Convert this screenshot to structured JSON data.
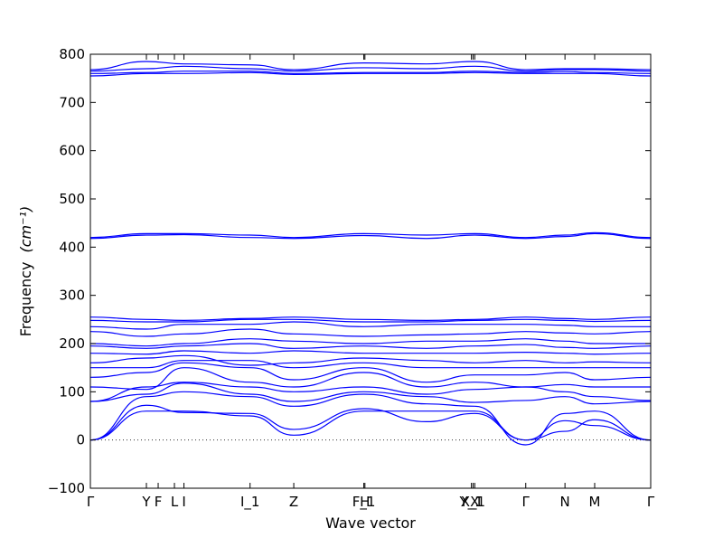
{
  "chart_data": {
    "type": "line",
    "xlabel": "Wave vector",
    "ylabel": "Frequency",
    "ylabel_unit": "(cm⁻¹)",
    "ylim": [
      -100,
      800
    ],
    "yticks": [
      "−100",
      "0",
      "100",
      "200",
      "300",
      "400",
      "500",
      "600",
      "700",
      "800"
    ],
    "ytick_values": [
      -100,
      0,
      100,
      200,
      300,
      400,
      500,
      600,
      700,
      800
    ],
    "xlim": [
      0,
      1
    ],
    "xticks": [
      {
        "label": "Γ",
        "x": 0.0
      },
      {
        "label": "Y",
        "x": 0.1
      },
      {
        "label": "F",
        "x": 0.121
      },
      {
        "label": "L",
        "x": 0.15
      },
      {
        "label": "I",
        "x": 0.167
      },
      {
        "label": "I_1",
        "x": 0.285
      },
      {
        "label": "Z",
        "x": 0.363
      },
      {
        "label": "F_1",
        "x": 0.488
      },
      {
        "label": "H",
        "x": 0.49
      },
      {
        "label": "Y_1",
        "x": 0.68
      },
      {
        "label": "X_1",
        "x": 0.683
      },
      {
        "label": "X",
        "x": 0.686
      },
      {
        "label": "Γ",
        "x": 0.777
      },
      {
        "label": "N",
        "x": 0.847
      },
      {
        "label": "M",
        "x": 0.9
      },
      {
        "label": "Γ",
        "x": 1.0
      }
    ],
    "x_sample": [
      0,
      0.1,
      0.167,
      0.285,
      0.363,
      0.488,
      0.6,
      0.686,
      0.777,
      0.847,
      0.9,
      1.0
    ],
    "series": [
      {
        "values": [
          0,
          72,
          57,
          55,
          22,
          65,
          38,
          55,
          0,
          18,
          42,
          0
        ]
      },
      {
        "values": [
          0,
          60,
          60,
          50,
          10,
          60,
          60,
          60,
          0,
          40,
          30,
          0
        ]
      },
      {
        "values": [
          0,
          90,
          100,
          90,
          70,
          95,
          75,
          70,
          -10,
          55,
          60,
          0
        ]
      },
      {
        "values": [
          80,
          95,
          118,
          95,
          80,
          100,
          90,
          78,
          82,
          90,
          75,
          80
        ]
      },
      {
        "values": [
          80,
          110,
          120,
          110,
          100,
          110,
          95,
          105,
          110,
          100,
          90,
          82
        ]
      },
      {
        "values": [
          110,
          105,
          150,
          120,
          110,
          140,
          110,
          120,
          110,
          115,
          110,
          110
        ]
      },
      {
        "values": [
          130,
          140,
          160,
          150,
          125,
          150,
          120,
          135,
          135,
          140,
          125,
          130
        ]
      },
      {
        "values": [
          150,
          150,
          165,
          165,
          150,
          160,
          150,
          150,
          150,
          150,
          150,
          150
        ]
      },
      {
        "values": [
          160,
          170,
          175,
          155,
          160,
          170,
          165,
          160,
          165,
          160,
          162,
          160
        ]
      },
      {
        "values": [
          180,
          178,
          185,
          180,
          185,
          180,
          180,
          180,
          182,
          180,
          178,
          180
        ]
      },
      {
        "values": [
          195,
          190,
          195,
          200,
          190,
          195,
          190,
          195,
          198,
          192,
          190,
          195
        ]
      },
      {
        "values": [
          200,
          195,
          200,
          210,
          205,
          200,
          205,
          205,
          210,
          205,
          200,
          200
        ]
      },
      {
        "values": [
          225,
          215,
          220,
          230,
          220,
          215,
          218,
          220,
          225,
          222,
          220,
          225
        ]
      },
      {
        "values": [
          235,
          230,
          240,
          240,
          245,
          235,
          240,
          240,
          240,
          238,
          235,
          235
        ]
      },
      {
        "values": [
          248,
          245,
          245,
          250,
          250,
          245,
          245,
          248,
          250,
          248,
          246,
          248
        ]
      },
      {
        "values": [
          255,
          250,
          248,
          252,
          255,
          250,
          248,
          250,
          255,
          252,
          250,
          255
        ]
      },
      {
        "values": [
          418,
          425,
          426,
          420,
          418,
          424,
          418,
          425,
          418,
          422,
          428,
          418
        ]
      },
      {
        "values": [
          420,
          428,
          428,
          425,
          420,
          428,
          425,
          428,
          420,
          425,
          430,
          420
        ]
      },
      {
        "values": [
          755,
          760,
          760,
          762,
          758,
          760,
          760,
          762,
          760,
          760,
          760,
          755
        ]
      },
      {
        "values": [
          760,
          762,
          765,
          765,
          760,
          762,
          762,
          765,
          762,
          764,
          762,
          760
        ]
      },
      {
        "values": [
          765,
          770,
          775,
          770,
          765,
          772,
          770,
          775,
          765,
          768,
          768,
          765
        ]
      },
      {
        "values": [
          768,
          785,
          780,
          778,
          768,
          782,
          780,
          785,
          768,
          770,
          770,
          768
        ]
      }
    ],
    "zero_line": true,
    "line_color": "#0000ff",
    "grid": false
  }
}
